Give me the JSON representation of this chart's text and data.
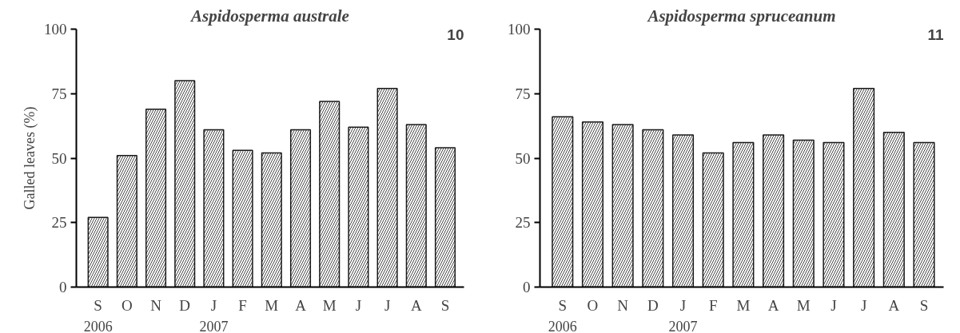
{
  "chart_data": [
    {
      "type": "bar",
      "title": "Aspidosperma australe",
      "ylabel": "Galled leaves (%)",
      "categories": [
        "S",
        "O",
        "N",
        "D",
        "J",
        "F",
        "M",
        "A",
        "M",
        "J",
        "J",
        "A",
        "S"
      ],
      "values": [
        27,
        51,
        69,
        80,
        61,
        53,
        52,
        61,
        72,
        62,
        77,
        63,
        54
      ],
      "color": "#ffffff",
      "ylim": [
        0,
        100
      ],
      "yticks": [
        0,
        25,
        50,
        75,
        100
      ],
      "grid": false,
      "annotations": [
        "10",
        "2006",
        "2007"
      ]
    },
    {
      "type": "bar",
      "title": "Aspidosperma spruceanum",
      "categories": [
        "S",
        "O",
        "N",
        "D",
        "J",
        "F",
        "M",
        "A",
        "M",
        "J",
        "J",
        "A",
        "S"
      ],
      "values": [
        66,
        64,
        63,
        61,
        59,
        52,
        56,
        59,
        57,
        56,
        77,
        60,
        56
      ],
      "color": "#ffffff",
      "ylim": [
        0,
        100
      ],
      "yticks": [
        0,
        25,
        50,
        75,
        100
      ],
      "grid": false,
      "annotations": [
        "11",
        "2006",
        "2007"
      ]
    }
  ]
}
